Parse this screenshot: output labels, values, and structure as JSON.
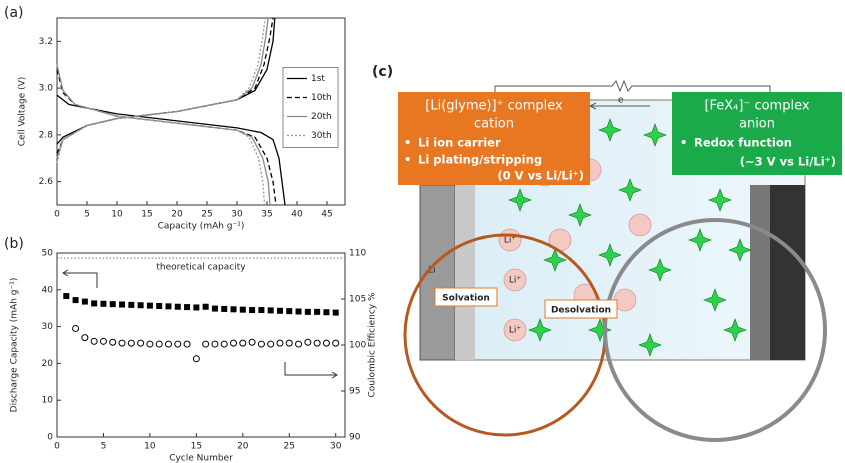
{
  "chart_data": [
    {
      "type": "line",
      "panel_label": "(a)",
      "x_label": "Capacity (mAh g⁻¹)",
      "y_label": "Cell Voltage (V)",
      "xlim": [
        0,
        48
      ],
      "ylim": [
        2.5,
        3.3
      ],
      "xticks": [
        0,
        5,
        10,
        15,
        20,
        25,
        30,
        35,
        40,
        45
      ],
      "yticks": [
        2.6,
        2.8,
        {
          "value": 3,
          "label": "3.0"
        },
        3.2
      ],
      "legend": "center right",
      "series": [
        {
          "name": "1st",
          "color": "#000000",
          "dash": "solid",
          "discharge": {
            "x": [
              0,
              2,
              10,
              20,
              30,
              34,
              36,
              37,
              37.5,
              38
            ],
            "y": [
              2.97,
              2.93,
              2.89,
              2.86,
              2.83,
              2.81,
              2.78,
              2.7,
              2.6,
              2.5
            ]
          },
          "charge": {
            "x": [
              0,
              1,
              5,
              10,
              20,
              30,
              33,
              35,
              36,
              36.3
            ],
            "y": [
              2.76,
              2.79,
              2.84,
              2.87,
              2.9,
              2.95,
              2.99,
              3.08,
              3.2,
              3.3
            ]
          }
        },
        {
          "name": "10th",
          "color": "#000000",
          "dash": "dashed",
          "discharge": {
            "x": [
              0,
              1,
              3,
              10,
              20,
              30,
              33,
              35,
              36,
              36.5
            ],
            "y": [
              3.08,
              2.98,
              2.93,
              2.88,
              2.85,
              2.82,
              2.79,
              2.7,
              2.6,
              2.5
            ]
          },
          "charge": {
            "x": [
              0,
              1,
              5,
              10,
              20,
              30,
              33,
              34.5,
              35.5,
              36
            ],
            "y": [
              2.72,
              2.78,
              2.84,
              2.87,
              2.9,
              2.95,
              3,
              3.1,
              3.22,
              3.3
            ]
          }
        },
        {
          "name": "20th",
          "color": "#888888",
          "dash": "solid",
          "discharge": {
            "x": [
              0,
              1,
              3,
              10,
              20,
              30,
              32.5,
              34.3,
              35.2,
              35.5
            ],
            "y": [
              3.1,
              2.99,
              2.93,
              2.88,
              2.85,
              2.82,
              2.79,
              2.7,
              2.6,
              2.5
            ]
          },
          "charge": {
            "x": [
              0,
              1,
              5,
              10,
              20,
              30,
              32.5,
              34,
              34.8,
              35.2
            ],
            "y": [
              2.7,
              2.78,
              2.84,
              2.87,
              2.9,
              2.95,
              3,
              3.1,
              3.22,
              3.3
            ]
          }
        },
        {
          "name": "30th",
          "color": "#999999",
          "dash": "dotted",
          "discharge": {
            "x": [
              0,
              1,
              3,
              10,
              20,
              30,
              32,
              33.6,
              34.3,
              34.6
            ],
            "y": [
              3.1,
              2.99,
              2.93,
              2.88,
              2.85,
              2.82,
              2.79,
              2.7,
              2.6,
              2.5
            ]
          },
          "charge": {
            "x": [
              0,
              1,
              5,
              10,
              20,
              30,
              32,
              33.5,
              34.3,
              34.7
            ],
            "y": [
              2.68,
              2.78,
              2.84,
              2.87,
              2.9,
              2.95,
              3,
              3.1,
              3.22,
              3.3
            ]
          }
        }
      ]
    },
    {
      "type": "scatter",
      "panel_label": "(b)",
      "x_label": "Cycle Number",
      "y_label": "Discharge Capacity (mAh g⁻¹)",
      "y2_label": "Coulombic Efficiency %",
      "xlim": [
        0,
        31
      ],
      "ylim": [
        0,
        50
      ],
      "y2lim": [
        90,
        110
      ],
      "xticks": [
        0,
        5,
        10,
        15,
        20,
        25,
        30
      ],
      "yticks": [
        0,
        10,
        20,
        30,
        40,
        50
      ],
      "y2ticks": [
        90,
        95,
        100,
        105,
        110
      ],
      "reference_line": 48.6,
      "reference_label": "theoretical capacity",
      "x": [
        1,
        2,
        3,
        4,
        5,
        6,
        7,
        8,
        9,
        10,
        11,
        12,
        13,
        14,
        15,
        16,
        17,
        18,
        19,
        20,
        21,
        22,
        23,
        24,
        25,
        26,
        27,
        28,
        29,
        30
      ],
      "series": [
        {
          "marker": "square",
          "color": "#000000",
          "values": [
            38.3,
            37.2,
            36.8,
            36.3,
            36.2,
            36.1,
            36,
            35.9,
            35.8,
            35.7,
            35.6,
            35.5,
            35.4,
            35.3,
            35.2,
            35.4,
            34.9,
            34.8,
            34.7,
            34.6,
            34.5,
            34.5,
            34.4,
            34.3,
            34.2,
            34.1,
            34,
            34,
            33.9,
            33.8
          ]
        },
        {
          "marker": "circle",
          "color": "#000000",
          "axis": "y2",
          "values": [
            null,
            101.8,
            100.8,
            100.4,
            100.4,
            100.3,
            100.2,
            100.2,
            100.2,
            100.1,
            100.1,
            100.1,
            100.1,
            100.1,
            98.5,
            100.1,
            100.1,
            100.1,
            100.2,
            100.2,
            100.3,
            100.1,
            100.1,
            100.2,
            100.2,
            100.1,
            100.3,
            100.2,
            100.2,
            100.2
          ]
        }
      ]
    }
  ],
  "diagram": {
    "panel_label": "(c)",
    "electron": "e",
    "electrode": "Li",
    "ion": "Li⁺",
    "cation_box": {
      "title_lines": [
        "[Li(glyme)]⁺ complex",
        "cation"
      ],
      "bullets": [
        "Li ion carrier",
        "Li plating/stripping"
      ],
      "note": "(0 V vs Li/Li⁺)"
    },
    "anion_box": {
      "title_lines": [
        "[FeX₄]⁻ complex",
        "anion"
      ],
      "bullets": [
        "Redox function"
      ],
      "note": "(~3 V vs Li/Li⁺)"
    },
    "steps": [
      "Solvation",
      "Desolvation"
    ]
  }
}
